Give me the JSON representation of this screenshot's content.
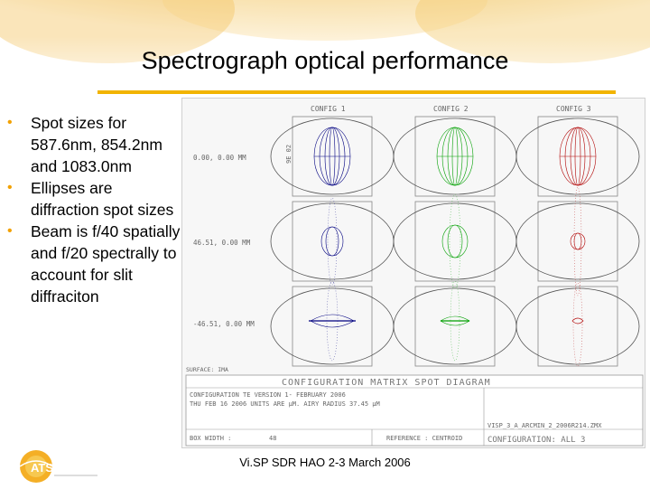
{
  "slide": {
    "title": "Spectrograph optical performance",
    "bullets": [
      "Spot sizes for 587.6nm, 854.2nm and 1083.0nm",
      "Ellipses are diffraction spot sizes",
      "Beam is f/40 spatially and f/20 spectrally to account for slit diffraciton"
    ],
    "footer": "Vi.SP SDR HAO 2-3 March 2006",
    "logo_text": "ATST"
  },
  "colors": {
    "accent_rule": "#f2b400",
    "bullet": "#f2a100",
    "config1": "#000080",
    "config2": "#00a000",
    "config3": "#b00000"
  },
  "plot": {
    "config_labels": [
      "CONFIG 1",
      "CONFIG 2",
      "CONFIG 3"
    ],
    "row_labels": [
      "0.00, 0.00 MM",
      "46.51, 0.00 MM",
      "-46.51, 0.00 MM"
    ],
    "side_label": "9E 02",
    "bottom_left_label": "SURFACE: IMA",
    "matrix_title": "CONFIGURATION MATRIX SPOT DIAGRAM",
    "info_line1": "CONFIGURATION TE VERSION 1- FEBRUARY 2006",
    "info_line2": "THU FEB 16 2006  UNITS ARE µM.  AIRY RADIUS        37.45 µM",
    "box_width_label": "BOX WIDTH :",
    "box_width_value": "48",
    "reference_label": "REFERENCE : CENTROID",
    "file_label": "VISP_3_A_ARCMIN_2_2006R214.ZMX",
    "config_footer": "CONFIGURATION: ALL 3"
  }
}
